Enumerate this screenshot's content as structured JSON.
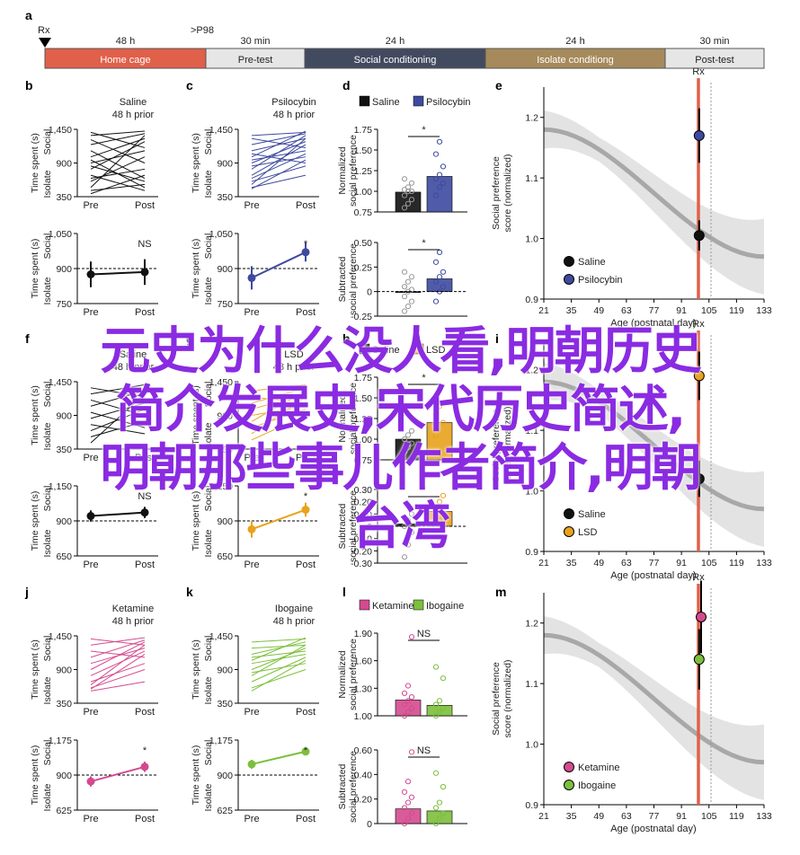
{
  "timeline": {
    "rx_label": "Rx",
    "p98_label": ">P98",
    "durations": [
      "48 h",
      "30 min",
      "24 h",
      "24 h",
      "30 min"
    ],
    "phases": [
      {
        "label": "Home cage",
        "color": "#e0604a",
        "text_color": "#ffffff"
      },
      {
        "label": "Pre-test",
        "color": "#e6e6e6",
        "text_color": "#222222"
      },
      {
        "label": "Social conditioning",
        "color": "#424a60",
        "text_color": "#ffffff"
      },
      {
        "label": "Isolate conditiong",
        "color": "#a68a5b",
        "text_color": "#ffffff"
      },
      {
        "label": "Post-test",
        "color": "#e6e6e6",
        "text_color": "#222222"
      }
    ]
  },
  "common": {
    "social_label": "Social",
    "isolate_label": "Isolate",
    "time_label": "Time spent (s)",
    "pre_label": "Pre",
    "post_label": "Post",
    "norm_label_1": "Normalized",
    "norm_label_2": "social preference",
    "sub_label_1": "Subtracted",
    "sub_label_2": "social preference",
    "score_label_1": "Social preference",
    "score_label_2": "score (normalized)",
    "age_label": "Age (postnatal day)",
    "rx_label": "Rx"
  },
  "overlay": {
    "line1": "元史为什么没人看,明朝历史",
    "line2": "简介发展史,宋代历史简述,",
    "line3": "明朝那些事儿作者简介,明朝",
    "line4": "台湾"
  },
  "chart_data": [
    {
      "letter": "b",
      "type": "line",
      "title1": "Saline",
      "title2": "48 h prior",
      "color": "#111111",
      "x": [
        "Pre",
        "Post"
      ],
      "ylim": [
        350,
        1450
      ],
      "yticks": [
        "1,450",
        "900",
        "350"
      ],
      "series": [
        [
          1400,
          1150
        ],
        [
          1350,
          1420
        ],
        [
          1280,
          900
        ],
        [
          1200,
          1380
        ],
        [
          1100,
          650
        ],
        [
          1000,
          1300
        ],
        [
          950,
          500
        ],
        [
          900,
          1100
        ],
        [
          850,
          600
        ],
        [
          800,
          1250
        ],
        [
          700,
          450
        ],
        [
          650,
          800
        ],
        [
          600,
          1000
        ],
        [
          500,
          1350
        ],
        [
          450,
          550
        ],
        [
          400,
          700
        ]
      ]
    },
    {
      "letter": "b2",
      "type": "line",
      "title1": "",
      "title2": "",
      "color": "#111111",
      "x": [
        "Pre",
        "Post"
      ],
      "ylim": [
        750,
        1050
      ],
      "yticks": [
        "1,050",
        "900",
        "750"
      ],
      "means": [
        875,
        885
      ],
      "err": [
        55,
        55
      ],
      "ref": 900,
      "sig": "NS"
    },
    {
      "letter": "c",
      "type": "line",
      "title1": "Psilocybin",
      "title2": "48 h prior",
      "color": "#3e4a9e",
      "x": [
        "Pre",
        "Post"
      ],
      "ylim": [
        350,
        1450
      ],
      "yticks": [
        "1,450",
        "900",
        "350"
      ],
      "series": [
        [
          1350,
          1400
        ],
        [
          1300,
          1150
        ],
        [
          1200,
          1380
        ],
        [
          1100,
          1300
        ],
        [
          1050,
          900
        ],
        [
          1000,
          1420
        ],
        [
          950,
          1100
        ],
        [
          900,
          1250
        ],
        [
          850,
          1000
        ],
        [
          800,
          1350
        ],
        [
          700,
          1200
        ],
        [
          650,
          1050
        ],
        [
          600,
          850
        ],
        [
          550,
          1300
        ],
        [
          500,
          700
        ],
        [
          480,
          950
        ]
      ]
    },
    {
      "letter": "c2",
      "type": "line",
      "title1": "",
      "title2": "",
      "color": "#3e4a9e",
      "x": [
        "Pre",
        "Post"
      ],
      "ylim": [
        750,
        1050
      ],
      "yticks": [
        "1,050",
        "900",
        "750"
      ],
      "means": [
        860,
        970
      ],
      "err": [
        50,
        40
      ],
      "ref": 900,
      "sig": "*"
    },
    {
      "letter": "f",
      "type": "line",
      "title1": "Saline",
      "title2": "48 h prior",
      "color": "#111111",
      "x": [
        "Pre",
        "Post"
      ],
      "ylim": [
        350,
        1450
      ],
      "yticks": [
        "1,450",
        "900",
        "350"
      ],
      "series": [
        [
          1350,
          1200
        ],
        [
          1250,
          1400
        ],
        [
          1150,
          900
        ],
        [
          1050,
          1300
        ],
        [
          950,
          700
        ],
        [
          850,
          1100
        ],
        [
          750,
          600
        ],
        [
          650,
          1000
        ],
        [
          550,
          800
        ],
        [
          450,
          1250
        ]
      ]
    },
    {
      "letter": "f2",
      "type": "line",
      "title1": "",
      "title2": "",
      "color": "#111111",
      "x": [
        "Pre",
        "Post"
      ],
      "ylim": [
        650,
        1150
      ],
      "yticks": [
        "1,150",
        "900",
        "650"
      ],
      "means": [
        935,
        960
      ],
      "err": [
        40,
        40
      ],
      "ref": 900,
      "sig": "NS"
    },
    {
      "letter": "g",
      "type": "line",
      "title1": "LSD",
      "title2": "48 h prior",
      "color": "#e8a21c",
      "x": [
        "Pre",
        "Post"
      ],
      "ylim": [
        350,
        1450
      ],
      "yticks": [
        "1,450",
        "900",
        "350"
      ],
      "series": [
        [
          1300,
          1400
        ],
        [
          1200,
          1100
        ],
        [
          1100,
          1350
        ],
        [
          1000,
          1250
        ],
        [
          900,
          1050
        ],
        [
          800,
          1300
        ],
        [
          700,
          1000
        ],
        [
          600,
          1200
        ],
        [
          500,
          900
        ]
      ]
    },
    {
      "letter": "g2",
      "type": "line",
      "title1": "",
      "title2": "",
      "color": "#e8a21c",
      "x": [
        "Pre",
        "Post"
      ],
      "ylim": [
        650,
        1150
      ],
      "yticks": [
        "1,150",
        "900",
        "650"
      ],
      "means": [
        840,
        980
      ],
      "err": [
        60,
        50
      ],
      "ref": 900,
      "sig": "*"
    },
    {
      "letter": "j",
      "type": "line",
      "title1": "Ketamine",
      "title2": "48 h prior",
      "color": "#d44a8f",
      "x": [
        "Pre",
        "Post"
      ],
      "ylim": [
        350,
        1450
      ],
      "yticks": [
        "1,450",
        "900",
        "350"
      ],
      "series": [
        [
          1400,
          1300
        ],
        [
          1300,
          1420
        ],
        [
          1200,
          1100
        ],
        [
          1100,
          1380
        ],
        [
          1000,
          1250
        ],
        [
          900,
          1350
        ],
        [
          800,
          1200
        ],
        [
          700,
          1000
        ],
        [
          650,
          1300
        ],
        [
          600,
          900
        ],
        [
          580,
          1150
        ],
        [
          550,
          700
        ]
      ]
    },
    {
      "letter": "j2",
      "type": "line",
      "title1": "",
      "title2": "",
      "color": "#d44a8f",
      "x": [
        "Pre",
        "Post"
      ],
      "ylim": [
        625,
        1175
      ],
      "yticks": [
        "1,175",
        "900",
        "625"
      ],
      "means": [
        850,
        965
      ],
      "err": [
        40,
        40
      ],
      "ref": 900,
      "sig": "*"
    },
    {
      "letter": "k",
      "type": "line",
      "title1": "Ibogaine",
      "title2": "48 h prior",
      "color": "#7cbf3c",
      "x": [
        "Pre",
        "Post"
      ],
      "ylim": [
        350,
        1450
      ],
      "yticks": [
        "1,450",
        "900",
        "350"
      ],
      "series": [
        [
          1350,
          1400
        ],
        [
          1250,
          1300
        ],
        [
          1150,
          1350
        ],
        [
          1100,
          1200
        ],
        [
          1050,
          1420
        ],
        [
          1000,
          1150
        ],
        [
          900,
          1250
        ],
        [
          850,
          1000
        ],
        [
          800,
          1300
        ],
        [
          700,
          1100
        ],
        [
          600,
          900
        ],
        [
          550,
          1050
        ]
      ]
    },
    {
      "letter": "k2",
      "type": "line",
      "title1": "",
      "title2": "",
      "color": "#7cbf3c",
      "x": [
        "Pre",
        "Post"
      ],
      "ylim": [
        625,
        1175
      ],
      "yticks": [
        "1,175",
        "900",
        "625"
      ],
      "means": [
        985,
        1085
      ],
      "err": [
        35,
        30
      ],
      "ref": 900,
      "sig": "*"
    },
    {
      "letter": "d",
      "type": "bar",
      "legend": [
        "Saline",
        "Psilocybin"
      ],
      "colors": [
        "#111111",
        "#3e4a9e"
      ],
      "ylim": [
        0.75,
        1.75
      ],
      "yticks": [
        "1.75",
        "1.50",
        "1.25",
        "1.00",
        "0.75"
      ],
      "values": [
        0.99,
        1.18
      ],
      "points": [
        [
          0.8,
          0.85,
          0.9,
          0.95,
          1.0,
          1.0,
          1.02,
          1.05,
          1.1,
          1.15
        ],
        [
          0.95,
          1.05,
          1.1,
          1.15,
          1.2,
          1.3,
          1.45,
          1.6
        ]
      ],
      "sig": "*"
    },
    {
      "letter": "d2",
      "type": "bar",
      "legend": [],
      "colors": [
        "#111111",
        "#3e4a9e"
      ],
      "ylim": [
        -0.25,
        0.5
      ],
      "yticks": [
        "0.50",
        "0.25",
        "0",
        "-0.25"
      ],
      "values": [
        0.0,
        0.13
      ],
      "points": [
        [
          -0.2,
          -0.15,
          -0.1,
          -0.05,
          0.0,
          0.02,
          0.05,
          0.1,
          0.15,
          0.2
        ],
        [
          -0.1,
          0.0,
          0.05,
          0.1,
          0.15,
          0.2,
          0.3,
          0.4
        ]
      ],
      "sig": "*"
    },
    {
      "letter": "h",
      "type": "bar",
      "legend": [
        "Saline",
        "LSD"
      ],
      "colors": [
        "#111111",
        "#e8a21c"
      ],
      "ylim": [
        0.75,
        1.75
      ],
      "yticks": [
        "1.75",
        "1.50",
        "1.25",
        "1.00",
        "0.75"
      ],
      "values": [
        1.0,
        1.2
      ],
      "points": [
        [
          0.85,
          0.9,
          0.95,
          1.0,
          1.05,
          1.1
        ],
        [
          1.05,
          1.15,
          1.2,
          1.3,
          1.4
        ]
      ],
      "sig": "*"
    },
    {
      "letter": "h2",
      "type": "bar",
      "legend": [],
      "colors": [
        "#111111",
        "#e8a21c"
      ],
      "ylim": [
        -0.3,
        0.3
      ],
      "yticks": [
        "0.30",
        "0.20",
        "0.10",
        "0",
        "-0.10",
        "-0.20",
        "-0.30"
      ],
      "values": [
        0.02,
        0.12
      ],
      "points": [
        [
          -0.25,
          -0.15,
          -0.05,
          0.0,
          0.05,
          0.1
        ],
        [
          0.0,
          0.05,
          0.1,
          0.15,
          0.2,
          0.25
        ]
      ],
      "sig": "*"
    },
    {
      "letter": "l",
      "type": "bar",
      "legend": [
        "Ketamine",
        "Ibogaine"
      ],
      "colors": [
        "#d44a8f",
        "#7cbf3c"
      ],
      "ylim": [
        1.0,
        2.1
      ],
      "yticks": [
        "1.90",
        "1.60",
        "1.30",
        "1.00"
      ],
      "values": [
        1.21,
        1.14
      ],
      "points": [
        [
          1.0,
          1.05,
          1.1,
          1.15,
          1.2,
          1.25,
          1.3,
          1.4,
          2.05
        ],
        [
          1.0,
          1.05,
          1.1,
          1.15,
          1.2,
          1.5,
          1.65
        ]
      ],
      "sig": "NS"
    },
    {
      "letter": "l2",
      "type": "bar",
      "legend": [],
      "colors": [
        "#d44a8f",
        "#7cbf3c"
      ],
      "ylim": [
        0,
        0.7
      ],
      "yticks": [
        "0.60",
        "0.40",
        "0.20",
        "0"
      ],
      "values": [
        0.14,
        0.12
      ],
      "points": [
        [
          0.0,
          0.05,
          0.1,
          0.15,
          0.2,
          0.25,
          0.3,
          0.4,
          0.68
        ],
        [
          0.0,
          0.05,
          0.1,
          0.15,
          0.2,
          0.35,
          0.48
        ]
      ],
      "sig": "NS"
    },
    {
      "letter": "e",
      "type": "scatter",
      "xticks": [
        21,
        35,
        49,
        63,
        77,
        91,
        105,
        119,
        133
      ],
      "yticks": [
        0.9,
        1.0,
        1.1,
        1.2
      ],
      "xlim": [
        21,
        133
      ],
      "ylim": [
        0.9,
        1.25
      ],
      "points": [
        {
          "name": "Saline",
          "x": 100,
          "y": 1.005,
          "err": 0.025,
          "color": "#111111"
        },
        {
          "name": "Psilocybin",
          "x": 100,
          "y": 1.17,
          "err": 0.045,
          "color": "#3e4a9e"
        }
      ]
    },
    {
      "letter": "i",
      "type": "scatter",
      "xticks": [
        21,
        35,
        49,
        63,
        77,
        91,
        105,
        119,
        133
      ],
      "yticks": [
        0.9,
        1.0,
        1.1,
        1.2
      ],
      "xlim": [
        21,
        133
      ],
      "ylim": [
        0.9,
        1.25
      ],
      "points": [
        {
          "name": "Saline",
          "x": 100,
          "y": 1.02,
          "err": 0.03,
          "color": "#111111"
        },
        {
          "name": "LSD",
          "x": 100,
          "y": 1.19,
          "err": 0.04,
          "color": "#e8a21c"
        }
      ]
    },
    {
      "letter": "m",
      "type": "scatter",
      "xticks": [
        21,
        35,
        49,
        63,
        77,
        91,
        105,
        119,
        133
      ],
      "yticks": [
        0.9,
        1.0,
        1.1,
        1.2
      ],
      "xlim": [
        21,
        133
      ],
      "ylim": [
        0.9,
        1.25
      ],
      "points": [
        {
          "name": "Ketamine",
          "x": 101,
          "y": 1.21,
          "err": 0.06,
          "color": "#d44a8f"
        },
        {
          "name": "Ibogaine",
          "x": 100,
          "y": 1.14,
          "err": 0.05,
          "color": "#7cbf3c"
        }
      ]
    }
  ]
}
